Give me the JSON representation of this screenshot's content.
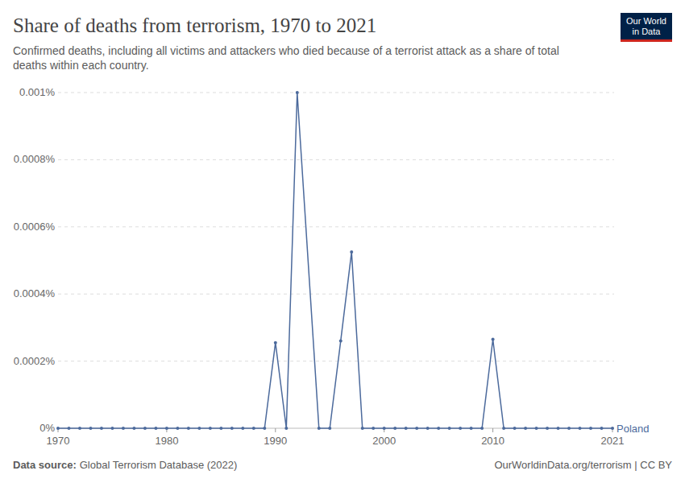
{
  "chart_data": {
    "type": "line",
    "title": "Share of deaths from terrorism, 1970 to 2021",
    "subtitle": [
      "Confirmed deaths, including all victims and attackers who died because of a terrorist attack as a share of total",
      "deaths within each country."
    ],
    "source_label": "Data source:",
    "source": "Global Terrorism Database (2022)",
    "footer_right": "OurWorldinData.org/terrorism | CC BY",
    "logo": [
      "Our World",
      "in Data"
    ],
    "x": [
      1970,
      1971,
      1972,
      1973,
      1974,
      1975,
      1976,
      1977,
      1978,
      1979,
      1980,
      1981,
      1982,
      1983,
      1984,
      1985,
      1986,
      1987,
      1988,
      1989,
      1990,
      1991,
      1992,
      1994,
      1995,
      1996,
      1997,
      1998,
      1999,
      2000,
      2001,
      2002,
      2003,
      2004,
      2005,
      2006,
      2007,
      2008,
      2009,
      2010,
      2011,
      2012,
      2013,
      2014,
      2015,
      2016,
      2017,
      2018,
      2019,
      2020,
      2021
    ],
    "series": [
      {
        "name": "Poland",
        "color": "#4c6a9c",
        "marker": "circle",
        "values": [
          0,
          0,
          0,
          0,
          0,
          0,
          0,
          0,
          0,
          0,
          0,
          0,
          0,
          0,
          0,
          0,
          0,
          0,
          0,
          0,
          0.000255,
          0,
          0.001,
          0,
          0,
          0.00026,
          0.000525,
          0,
          0,
          0,
          0,
          0,
          0,
          0,
          0,
          0,
          0,
          0,
          0,
          0.000265,
          0,
          0,
          0,
          0,
          0,
          0,
          0,
          0,
          0,
          0,
          0
        ]
      }
    ],
    "xlim": [
      1970,
      2021
    ],
    "xticks": [
      1970,
      1980,
      1990,
      2000,
      2010,
      2021
    ],
    "ylim": [
      0,
      0.001
    ],
    "yticks": [
      {
        "value": 0,
        "label": "0%"
      },
      {
        "value": 0.0002,
        "label": "0.0002%"
      },
      {
        "value": 0.0004,
        "label": "0.0004%"
      },
      {
        "value": 0.0006,
        "label": "0.0006%"
      },
      {
        "value": 0.0008,
        "label": "0.0008%"
      },
      {
        "value": 0.001,
        "label": "0.001%"
      }
    ],
    "grid": true
  }
}
